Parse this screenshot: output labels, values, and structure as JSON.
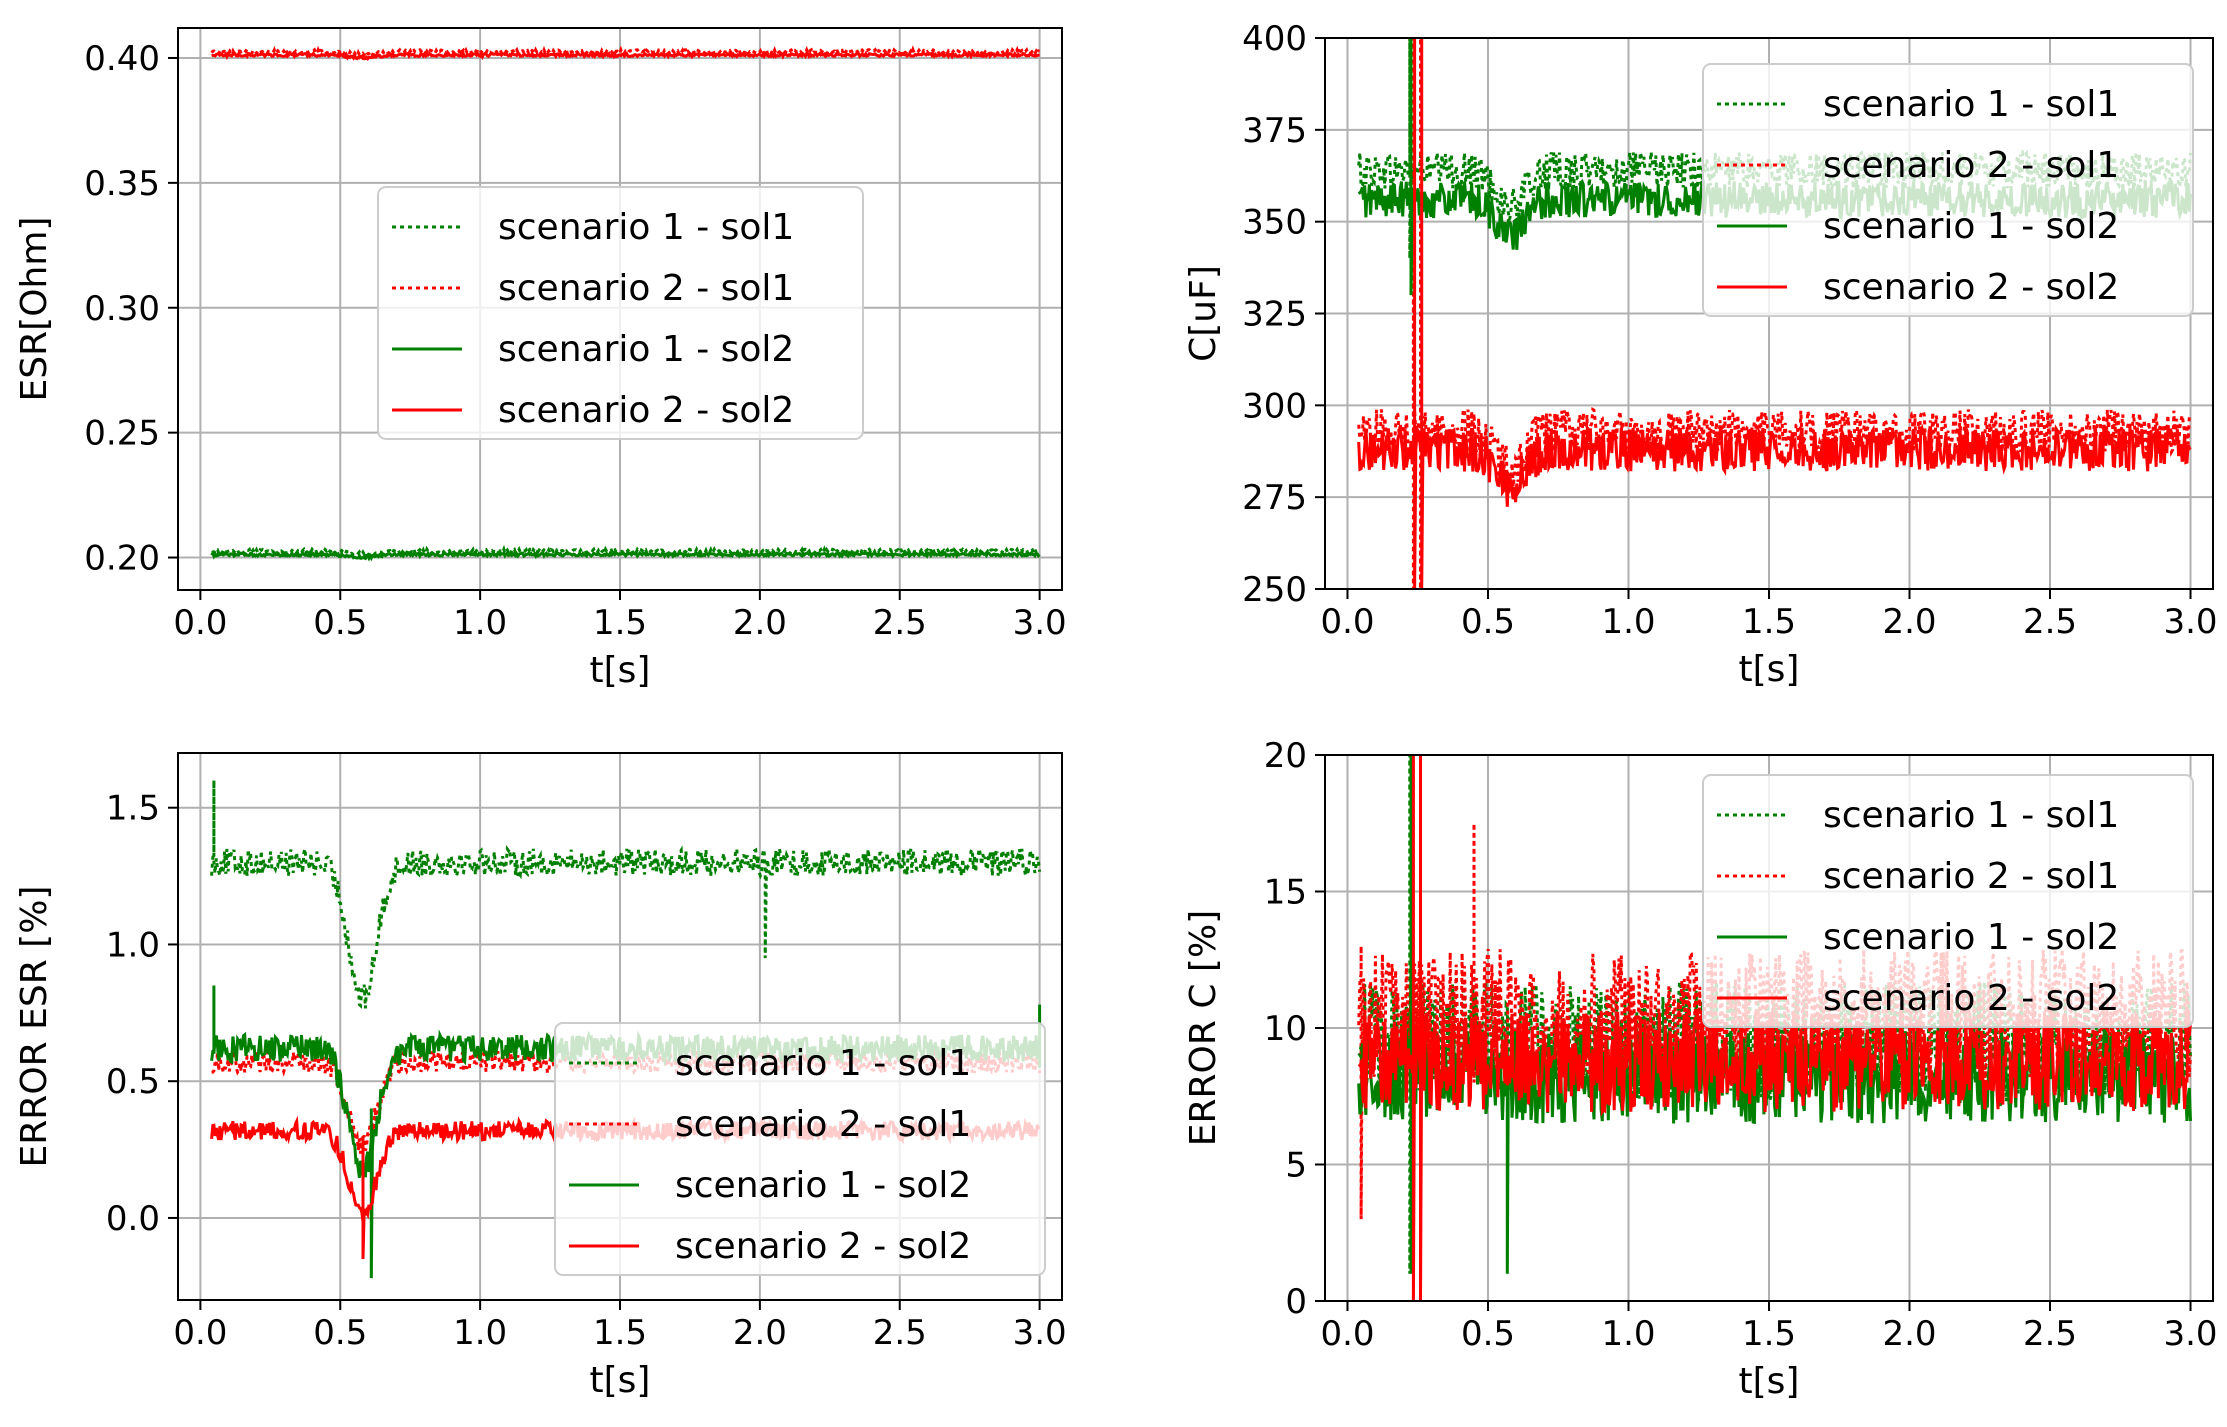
{
  "chart_data": [
    {
      "type": "line",
      "xlabel": "t[s]",
      "ylabel": "ESR[Ohm]",
      "xlim": [
        -0.08,
        3.08
      ],
      "ylim": [
        0.187,
        0.412
      ],
      "xticks": [
        "0.0",
        "0.5",
        "1.0",
        "1.5",
        "2.0",
        "2.5",
        "3.0"
      ],
      "yticks": [
        "0.20",
        "0.25",
        "0.30",
        "0.35",
        "0.40"
      ],
      "grid": true,
      "legend_position": "center",
      "series": [
        {
          "name": "scenario 1 - sol1",
          "color": "#008000",
          "style": "dotted",
          "x_range": [
            0.04,
            3.0
          ],
          "base": 0.2025,
          "noise": 0.0008,
          "dip": -0.001,
          "spikes": []
        },
        {
          "name": "scenario 2 - sol1",
          "color": "#ff0000",
          "style": "dotted",
          "x_range": [
            0.04,
            3.0
          ],
          "base": 0.4025,
          "noise": 0.0008,
          "dip": -0.001,
          "spikes": []
        },
        {
          "name": "scenario 1 - sol2",
          "color": "#008000",
          "style": "solid",
          "x_range": [
            0.04,
            3.0
          ],
          "base": 0.2012,
          "noise": 0.0006,
          "dip": -0.001,
          "spikes": []
        },
        {
          "name": "scenario 2 - sol2",
          "color": "#ff0000",
          "style": "solid",
          "x_range": [
            0.04,
            3.0
          ],
          "base": 0.4012,
          "noise": 0.0006,
          "dip": -0.001,
          "spikes": []
        }
      ]
    },
    {
      "type": "line",
      "xlabel": "t[s]",
      "ylabel": "C[uF]",
      "xlim": [
        -0.08,
        3.08
      ],
      "ylim": [
        250,
        400
      ],
      "xticks": [
        "0.0",
        "0.5",
        "1.0",
        "1.5",
        "2.0",
        "2.5",
        "3.0"
      ],
      "yticks": [
        "250",
        "275",
        "300",
        "325",
        "350",
        "375",
        "400"
      ],
      "grid": true,
      "legend_position": "upper right",
      "series": [
        {
          "name": "scenario 1 - sol1",
          "color": "#008000",
          "style": "dotted",
          "x_range": [
            0.04,
            3.0
          ],
          "base": 364,
          "noise": 5,
          "dip": -10,
          "spikes": [
            {
              "x": 0.22,
              "lo": 340,
              "hi": 400
            }
          ]
        },
        {
          "name": "scenario 2 - sol1",
          "color": "#ff0000",
          "style": "dotted",
          "x_range": [
            0.04,
            3.0
          ],
          "base": 293,
          "noise": 6,
          "dip": -10,
          "spikes": [
            {
              "x": 0.235,
              "lo": 250,
              "hi": 400
            },
            {
              "x": 0.26,
              "lo": 250,
              "hi": 400
            }
          ]
        },
        {
          "name": "scenario 1 - sol2",
          "color": "#008000",
          "style": "solid",
          "x_range": [
            0.04,
            3.0
          ],
          "base": 356,
          "noise": 5,
          "dip": -10,
          "spikes": [
            {
              "x": 0.225,
              "lo": 330,
              "hi": 400
            }
          ]
        },
        {
          "name": "scenario 2 - sol2",
          "color": "#ff0000",
          "style": "solid",
          "x_range": [
            0.04,
            3.0
          ],
          "base": 288,
          "noise": 6,
          "dip": -10,
          "spikes": [
            {
              "x": 0.24,
              "lo": 250,
              "hi": 400
            },
            {
              "x": 0.265,
              "lo": 250,
              "hi": 400
            }
          ]
        }
      ]
    },
    {
      "type": "line",
      "xlabel": "t[s]",
      "ylabel": "ERROR ESR [%]",
      "xlim": [
        -0.08,
        3.08
      ],
      "ylim": [
        -0.3,
        1.7
      ],
      "xticks": [
        "0.0",
        "0.5",
        "1.0",
        "1.5",
        "2.0",
        "2.5",
        "3.0"
      ],
      "yticks": [
        "0.0",
        "0.5",
        "1.0",
        "1.5"
      ],
      "grid": true,
      "legend_position": "lower right",
      "series": [
        {
          "name": "scenario 1 - sol1",
          "color": "#008000",
          "style": "dotted",
          "x_range": [
            0.04,
            3.0
          ],
          "base": 1.3,
          "noise": 0.05,
          "dip": -0.5,
          "spikes": [
            {
              "x": 0.05,
              "lo": 1.3,
              "hi": 1.6
            },
            {
              "x": 2.02,
              "lo": 0.95,
              "hi": 1.25
            }
          ]
        },
        {
          "name": "scenario 2 - sol1",
          "color": "#ff0000",
          "style": "dotted",
          "x_range": [
            0.04,
            3.0
          ],
          "base": 0.57,
          "noise": 0.04,
          "dip": -0.3,
          "spikes": []
        },
        {
          "name": "scenario 1 - sol2",
          "color": "#008000",
          "style": "solid",
          "x_range": [
            0.04,
            3.0
          ],
          "base": 0.62,
          "noise": 0.05,
          "dip": -0.45,
          "spikes": [
            {
              "x": 0.05,
              "lo": 0.6,
              "hi": 0.85
            },
            {
              "x": 0.61,
              "lo": -0.22,
              "hi": 0.4
            },
            {
              "x": 3.0,
              "lo": 0.55,
              "hi": 0.78
            }
          ]
        },
        {
          "name": "scenario 2 - sol2",
          "color": "#ff0000",
          "style": "solid",
          "x_range": [
            0.04,
            3.0
          ],
          "base": 0.32,
          "noise": 0.035,
          "dip": -0.3,
          "spikes": [
            {
              "x": 0.58,
              "lo": -0.15,
              "hi": 0.3
            }
          ]
        }
      ]
    },
    {
      "type": "line",
      "xlabel": "t[s]",
      "ylabel": "ERROR C [%]",
      "xlim": [
        -0.08,
        3.08
      ],
      "ylim": [
        0,
        20
      ],
      "xticks": [
        "0.0",
        "0.5",
        "1.0",
        "1.5",
        "2.0",
        "2.5",
        "3.0"
      ],
      "yticks": [
        "0",
        "5",
        "10",
        "15",
        "20"
      ],
      "grid": true,
      "legend_position": "upper right",
      "series": [
        {
          "name": "scenario 1 - sol1",
          "color": "#008000",
          "style": "dotted",
          "x_range": [
            0.04,
            3.0
          ],
          "base": 9.5,
          "noise": 2.2,
          "dip": 0,
          "spikes": [
            {
              "x": 0.22,
              "lo": 1,
              "hi": 20
            }
          ]
        },
        {
          "name": "scenario 2 - sol1",
          "color": "#ff0000",
          "style": "dotted",
          "x_range": [
            0.04,
            3.0
          ],
          "base": 10.5,
          "noise": 2.4,
          "dip": 0,
          "spikes": [
            {
              "x": 0.45,
              "lo": 8,
              "hi": 17.5
            },
            {
              "x": 0.05,
              "lo": 3,
              "hi": 13
            }
          ]
        },
        {
          "name": "scenario 1 - sol2",
          "color": "#008000",
          "style": "solid",
          "x_range": [
            0.04,
            3.0
          ],
          "base": 8.2,
          "noise": 1.7,
          "dip": 0,
          "spikes": [
            {
              "x": 0.225,
              "lo": 1,
              "hi": 20
            },
            {
              "x": 0.57,
              "lo": 1,
              "hi": 9
            }
          ]
        },
        {
          "name": "scenario 2 - sol2",
          "color": "#ff0000",
          "style": "solid",
          "x_range": [
            0.04,
            3.0
          ],
          "base": 8.8,
          "noise": 1.9,
          "dip": 0,
          "spikes": [
            {
              "x": 0.235,
              "lo": 0,
              "hi": 20
            },
            {
              "x": 0.26,
              "lo": 0,
              "hi": 20
            }
          ]
        }
      ]
    }
  ]
}
